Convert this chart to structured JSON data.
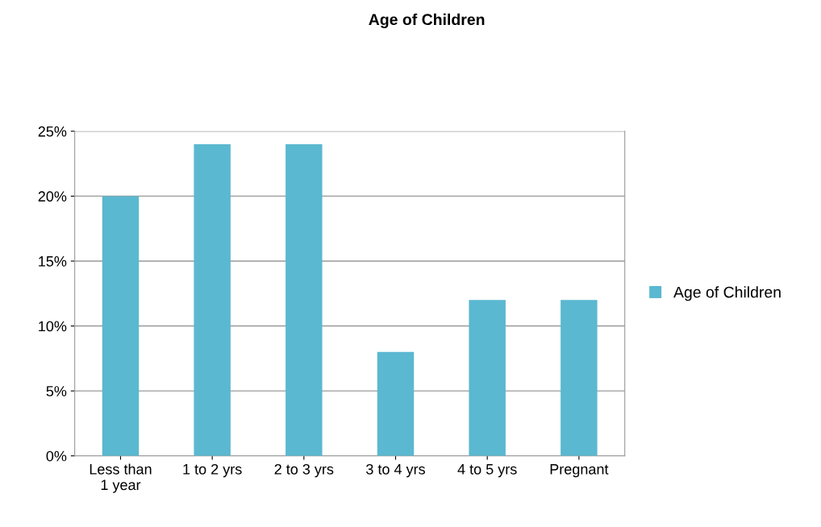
{
  "chart_data": {
    "type": "bar",
    "title": "Age of Children",
    "categories": [
      "Less than\n1 year",
      "1 to 2 yrs",
      "2 to 3 yrs",
      "3 to 4 yrs",
      "4 to 5 yrs",
      "Pregnant"
    ],
    "series": [
      {
        "name": "Age of Children",
        "color": "#5ab8d0",
        "values": [
          20,
          24,
          24,
          8,
          12,
          12
        ]
      }
    ],
    "ylim": [
      0,
      25
    ],
    "yticks": [
      {
        "value": 0,
        "label": "0%"
      },
      {
        "value": 5,
        "label": "5%"
      },
      {
        "value": 10,
        "label": "10%"
      },
      {
        "value": 15,
        "label": "15%"
      },
      {
        "value": 20,
        "label": "20%"
      },
      {
        "value": 25,
        "label": "25%"
      }
    ],
    "grid": "y",
    "legend": "right"
  }
}
